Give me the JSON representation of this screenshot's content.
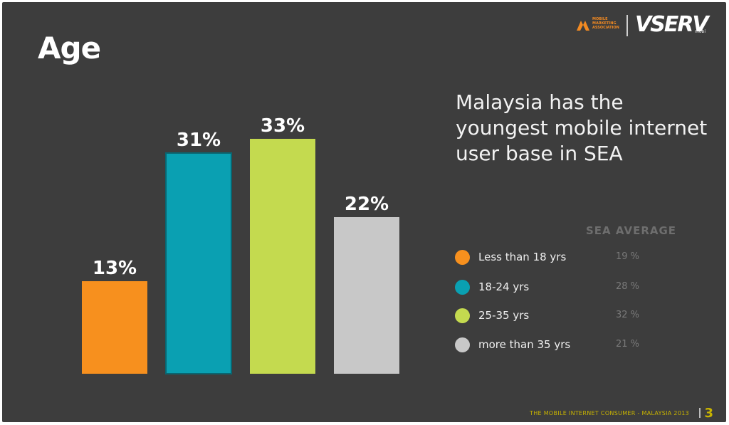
{
  "title": "Age",
  "brand": {
    "mma_text": "Mobile Marketing Association",
    "vserv": "VSERV",
    "vserv_suffix": "mobi"
  },
  "headline": "Malaysia has the youngest mobile internet user base in SEA",
  "sea_average_header": "SEA AVERAGE",
  "legend": [
    {
      "label": "Less than 18 yrs",
      "sea_avg": "19 %",
      "color": "#f7901e"
    },
    {
      "label": "18-24 yrs",
      "sea_avg": "28 %",
      "color": "#0aa0b2"
    },
    {
      "label": "25-35 yrs",
      "sea_avg": "32 %",
      "color": "#c4da4f"
    },
    {
      "label": "more than 35 yrs",
      "sea_avg": "21 %",
      "color": "#c8c8c8"
    }
  ],
  "footer": "THE MOBILE INTERNET CONSUMER - MALAYSIA 2013",
  "page_number": "3",
  "chart_data": {
    "type": "bar",
    "categories": [
      "Less than 18 yrs",
      "18-24 yrs",
      "25-35 yrs",
      "more than 35 yrs"
    ],
    "values": [
      13,
      31,
      33,
      22
    ],
    "labels": [
      "13%",
      "31%",
      "33%",
      "22%"
    ],
    "colors": [
      "#f7901e",
      "#0aa0b2",
      "#c4da4f",
      "#c8c8c8"
    ],
    "title": "Age",
    "xlabel": "",
    "ylabel": "",
    "grid": false,
    "legend_position": "right"
  }
}
